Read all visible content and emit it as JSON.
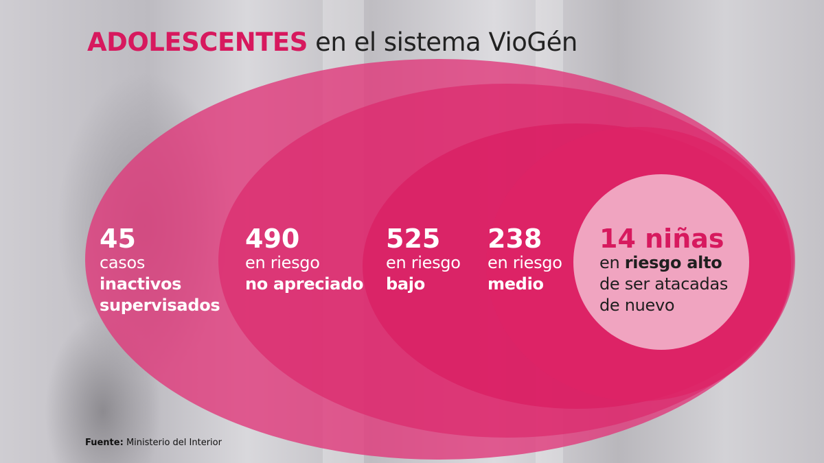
{
  "title": {
    "highlight": "ADOLESCENTES",
    "rest": "en el sistema VioGén"
  },
  "groups": [
    {
      "number": "45",
      "line1": "casos",
      "bold1": "inactivos",
      "bold2": "supervisados"
    },
    {
      "number": "490",
      "line1": "en riesgo",
      "bold1": "no apreciado"
    },
    {
      "number": "525",
      "line1": "en riesgo",
      "bold1": "bajo"
    },
    {
      "number": "238",
      "line1": "en riesgo",
      "bold1": "medio"
    },
    {
      "number": "14 niñas",
      "line1_pre": "en",
      "bold1": "riesgo alto",
      "line2": "de ser atacadas",
      "line3": "de nuevo"
    }
  ],
  "source": {
    "label": "Fuente:",
    "text": "Ministerio del Interior"
  },
  "colors": {
    "accent": "#d7195e",
    "ellipse_fill": "#e0387a",
    "inner_circle": "#f0a4c0",
    "title_text": "#222222"
  }
}
